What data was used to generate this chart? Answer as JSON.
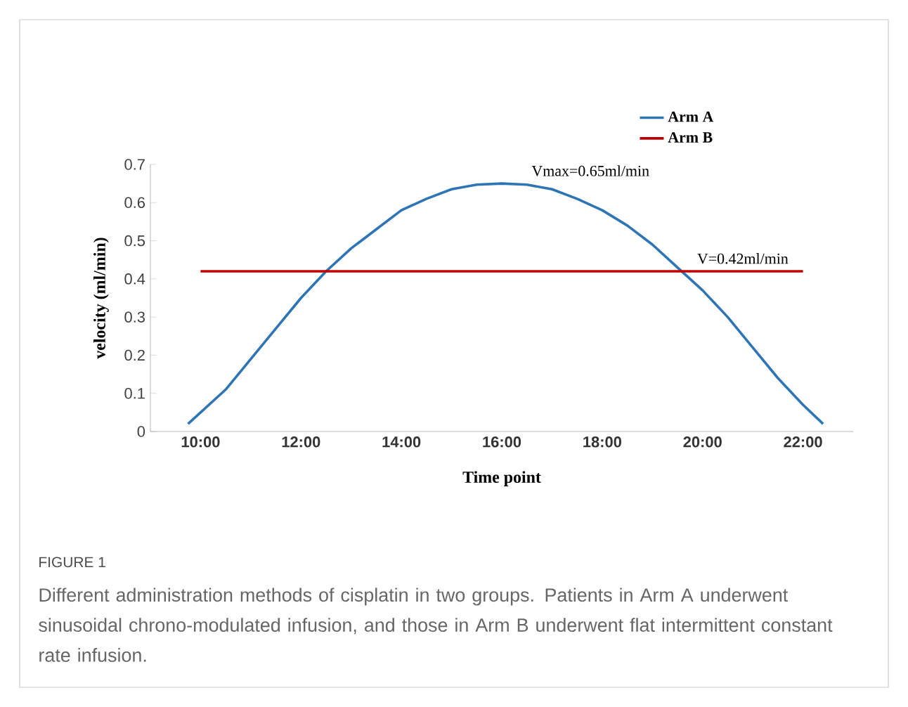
{
  "chart_data": {
    "type": "line",
    "xlabel": "Time point",
    "ylabel": "velocity (ml/min)",
    "xlim": [
      9,
      23
    ],
    "ylim": [
      0,
      0.7
    ],
    "xticks": [
      {
        "value": 10,
        "label": "10:00"
      },
      {
        "value": 12,
        "label": "12:00"
      },
      {
        "value": 14,
        "label": "14:00"
      },
      {
        "value": 16,
        "label": "16:00"
      },
      {
        "value": 18,
        "label": "18:00"
      },
      {
        "value": 20,
        "label": "20:00"
      },
      {
        "value": 22,
        "label": "22:00"
      }
    ],
    "yticks": [
      0,
      0.1,
      0.2,
      0.3,
      0.4,
      0.5,
      0.6,
      0.7
    ],
    "grid": false,
    "legend": "top",
    "marker": "none",
    "line_style": "solid",
    "series": [
      {
        "name": "Arm **A**",
        "color": "#2e75b6",
        "x": [
          9.75,
          10.5,
          11,
          11.5,
          12,
          12.5,
          13,
          13.5,
          14,
          14.5,
          15,
          15.5,
          16,
          16.5,
          17,
          17.5,
          18,
          18.5,
          19,
          19.5,
          20,
          20.5,
          21,
          21.5,
          22,
          22.4
        ],
        "values": [
          0.02,
          0.11,
          0.19,
          0.27,
          0.35,
          0.42,
          0.48,
          0.53,
          0.58,
          0.61,
          0.635,
          0.647,
          0.65,
          0.647,
          0.635,
          0.61,
          0.58,
          0.54,
          0.49,
          0.43,
          0.37,
          0.3,
          0.22,
          0.14,
          0.07,
          0.02
        ]
      },
      {
        "name": "Arm **B**",
        "color": "#c00000",
        "x": [
          10,
          22
        ],
        "values": [
          0.42,
          0.42
        ]
      }
    ],
    "annotations": [
      {
        "text": "Vmax=0.65ml/min",
        "x": 16,
        "y": 0.65
      },
      {
        "text": "V=0.42ml/min",
        "x": 20.8,
        "y": 0.42
      },
      "FIGURE 1",
      "Different administration methods of cisplatin in two groups. Patients in Arm A underwent sinusoidal chrono-modulated infusion, and those in Arm B underwent flat intermittent constant rate infusion."
    ]
  }
}
